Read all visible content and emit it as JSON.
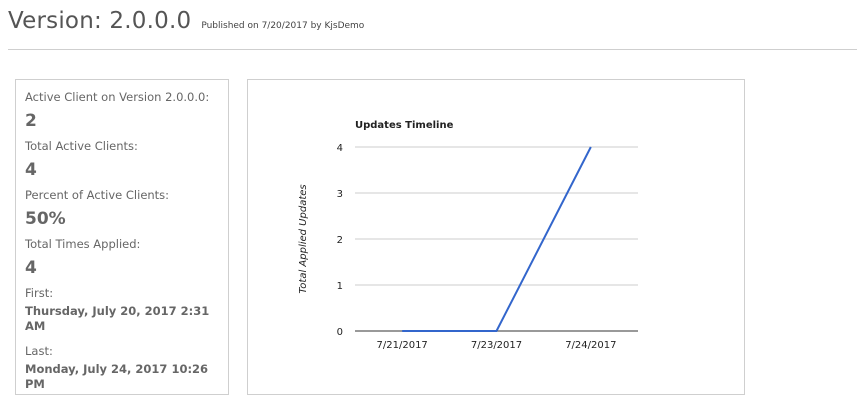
{
  "header": {
    "title": "Version: 2.0.0.0",
    "published": "Published on 7/20/2017 by KjsDemo"
  },
  "stats": {
    "active_client_label": "Active Client on Version 2.0.0.0:",
    "active_client_value": "2",
    "total_active_label": "Total Active Clients:",
    "total_active_value": "4",
    "percent_label": "Percent of Active Clients:",
    "percent_value": "50%",
    "times_applied_label": "Total Times Applied:",
    "times_applied_value": "4",
    "first_label": "First:",
    "first_value": "Thursday, July 20, 2017 2:31 AM",
    "last_label": "Last:",
    "last_value": "Monday, July 24, 2017 10:26 PM"
  },
  "chart_data": {
    "type": "line",
    "title": "Updates Timeline",
    "ylabel": "Total Applied Updates",
    "xlabel": "",
    "x_ticks": [
      "7/21/2017",
      "7/23/2017",
      "7/24/2017"
    ],
    "y_ticks": [
      0,
      1,
      2,
      3,
      4
    ],
    "ylim": [
      0,
      4
    ],
    "grid": true,
    "series": [
      {
        "color": "#3366cc",
        "points": [
          {
            "x": "7/21/2017",
            "y": 0
          },
          {
            "x": "7/23/2017",
            "y": 0
          },
          {
            "x": "7/24/2017",
            "y": 4
          }
        ]
      }
    ]
  }
}
